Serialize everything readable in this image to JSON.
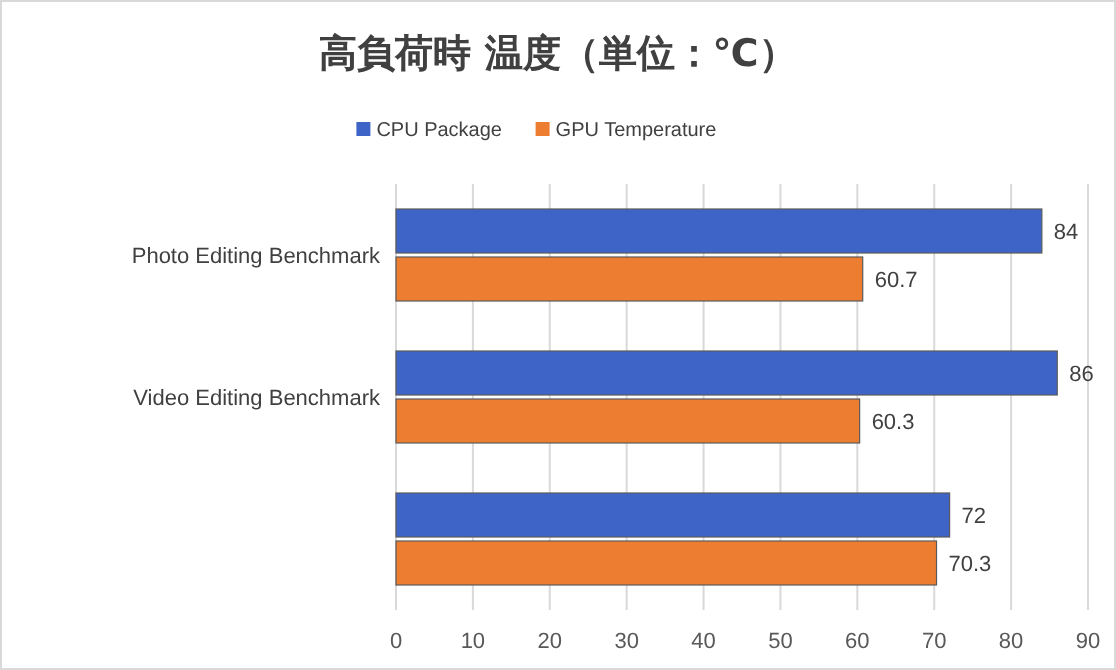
{
  "chart_data": {
    "type": "bar",
    "orientation": "horizontal",
    "title": "高負荷時 温度（単位：℃）",
    "categories": [
      "Photo Editing Benchmark",
      "Video Editing Benchmark",
      null
    ],
    "series": [
      {
        "name": "CPU Package",
        "color": "#3e64c8",
        "values": [
          84,
          86,
          72
        ]
      },
      {
        "name": "GPU Temperature",
        "color": "#ed7d31",
        "values": [
          60.7,
          60.3,
          70.3
        ]
      }
    ],
    "xlim": [
      0,
      90
    ],
    "xticks": [
      0,
      10,
      20,
      30,
      40,
      50,
      60,
      70,
      80,
      90
    ],
    "grid": "x",
    "legend": "top",
    "data_labels": true
  }
}
